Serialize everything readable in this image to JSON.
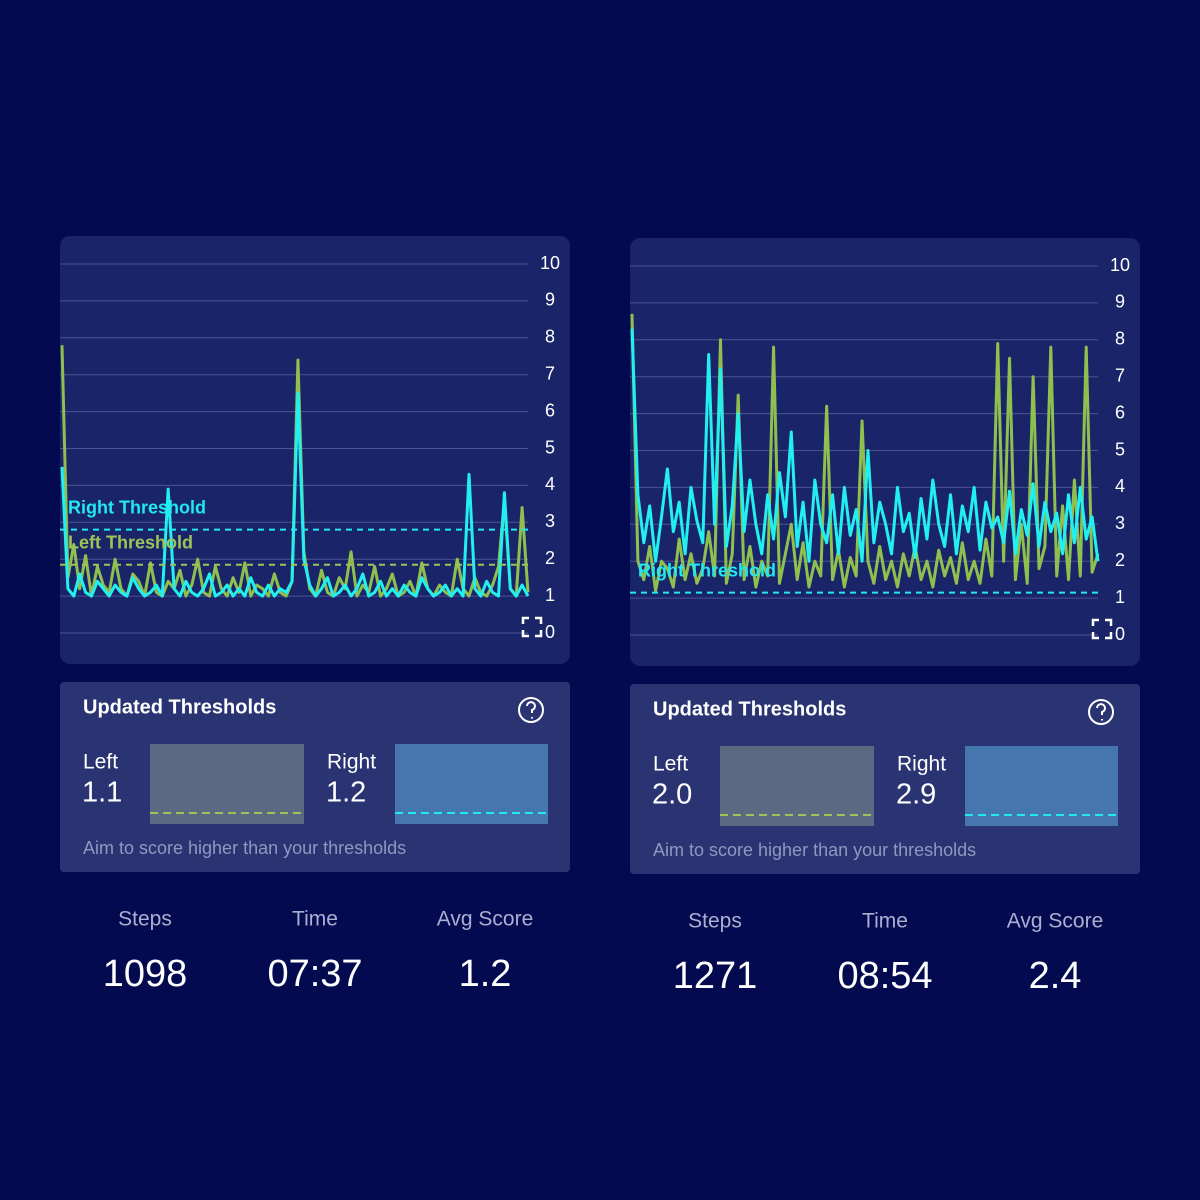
{
  "chart_data": [
    {
      "type": "line",
      "ylim": [
        0,
        10
      ],
      "yticks": [
        0,
        1,
        2,
        3,
        4,
        5,
        6,
        7,
        8,
        9,
        10
      ],
      "grid": true,
      "thresholds": [
        {
          "label": "Right Threshold",
          "value": 2.8,
          "color": "#22e8f0"
        },
        {
          "label": "Left Threshold",
          "value": 1.85,
          "color": "#9cc45a"
        }
      ],
      "series": [
        {
          "color": "#8fbf4f",
          "values": [
            7.8,
            1.5,
            2.4,
            1.2,
            2.1,
            1.0,
            1.8,
            1.3,
            1.1,
            2.0,
            1.2,
            1.0,
            1.6,
            1.4,
            1.0,
            1.9,
            1.1,
            1.0,
            1.4,
            1.2,
            1.7,
            1.0,
            1.3,
            2.0,
            1.1,
            1.0,
            1.8,
            1.2,
            1.0,
            1.5,
            1.1,
            1.9,
            1.0,
            1.3,
            1.2,
            1.0,
            1.6,
            1.1,
            1.0,
            1.4,
            7.4,
            2.2,
            1.2,
            1.0,
            1.7,
            1.1,
            1.0,
            1.5,
            1.2,
            2.2,
            1.0,
            1.3,
            1.1,
            1.8,
            1.0,
            1.2,
            1.6,
            1.0,
            1.1,
            1.4,
            1.0,
            1.9,
            1.2,
            1.0,
            1.3,
            1.1,
            1.0,
            2.0,
            1.2,
            1.0,
            1.5,
            1.1,
            1.0,
            1.3,
            1.8,
            3.6,
            1.2,
            1.0,
            3.4,
            1.1
          ]
        },
        {
          "color": "#22f0f0",
          "values": [
            4.5,
            1.2,
            1.0,
            1.6,
            1.1,
            1.0,
            1.4,
            1.2,
            1.0,
            1.3,
            1.1,
            1.0,
            1.5,
            1.2,
            1.0,
            1.1,
            1.3,
            1.0,
            3.9,
            1.2,
            1.0,
            1.4,
            1.1,
            1.0,
            1.2,
            1.6,
            1.0,
            1.1,
            1.3,
            1.0,
            1.2,
            1.0,
            1.5,
            1.1,
            1.0,
            1.3,
            1.0,
            1.2,
            1.1,
            1.4,
            6.5,
            2.0,
            1.3,
            1.0,
            1.2,
            1.5,
            1.0,
            1.1,
            1.3,
            1.0,
            1.2,
            1.6,
            1.0,
            1.1,
            1.4,
            1.0,
            1.2,
            1.0,
            1.3,
            1.1,
            1.0,
            1.5,
            1.2,
            1.0,
            1.1,
            1.3,
            1.0,
            1.2,
            1.0,
            4.3,
            1.2,
            1.0,
            1.4,
            1.1,
            1.0,
            3.8,
            1.2,
            1.0,
            1.3,
            1.0
          ]
        }
      ]
    },
    {
      "type": "line",
      "ylim": [
        0,
        10
      ],
      "yticks": [
        0,
        1,
        2,
        3,
        4,
        5,
        6,
        7,
        8,
        9,
        10
      ],
      "grid": true,
      "thresholds": [
        {
          "label": "Right Threshold",
          "value": 1.15,
          "color": "#22e8f0"
        }
      ],
      "series": [
        {
          "color": "#8fbf4f",
          "values": [
            8.7,
            2.0,
            1.5,
            2.4,
            1.2,
            2.0,
            1.8,
            1.3,
            2.6,
            1.5,
            2.2,
            1.4,
            1.8,
            2.8,
            1.6,
            8.0,
            1.4,
            2.2,
            6.5,
            1.5,
            2.4,
            1.3,
            2.0,
            1.6,
            7.8,
            1.4,
            2.2,
            3.0,
            1.5,
            2.5,
            1.3,
            2.0,
            1.6,
            6.2,
            1.5,
            2.3,
            1.3,
            2.1,
            1.6,
            5.8,
            2.0,
            1.4,
            2.4,
            1.5,
            2.0,
            1.3,
            2.2,
            1.6,
            2.4,
            1.5,
            2.0,
            1.3,
            2.3,
            1.6,
            2.1,
            1.4,
            2.5,
            1.5,
            2.0,
            1.4,
            2.6,
            1.6,
            7.9,
            2.0,
            7.5,
            1.5,
            3.0,
            1.4,
            7.0,
            1.8,
            2.4,
            7.8,
            1.6,
            3.5,
            1.5,
            4.2,
            1.6,
            7.8,
            1.7,
            2.2
          ]
        },
        {
          "color": "#22f0f0",
          "values": [
            8.3,
            3.8,
            2.5,
            3.5,
            2.0,
            3.2,
            4.5,
            2.8,
            3.6,
            2.2,
            4.0,
            3.1,
            2.5,
            7.6,
            3.0,
            7.2,
            2.4,
            3.5,
            6.0,
            2.8,
            4.2,
            3.0,
            2.2,
            3.8,
            2.6,
            4.4,
            3.2,
            5.5,
            2.4,
            3.6,
            2.0,
            4.2,
            3.0,
            2.5,
            3.8,
            2.2,
            4.0,
            2.7,
            3.4,
            2.0,
            5.0,
            2.5,
            3.6,
            3.0,
            2.2,
            4.0,
            2.8,
            3.3,
            2.1,
            3.7,
            2.6,
            4.2,
            3.0,
            2.4,
            3.8,
            2.2,
            3.5,
            2.8,
            4.0,
            2.3,
            3.6,
            2.9,
            3.2,
            2.5,
            3.9,
            2.2,
            3.4,
            2.7,
            4.1,
            2.4,
            3.6,
            2.8,
            3.3,
            2.2,
            3.8,
            2.5,
            4.0,
            2.6,
            3.2,
            2.0
          ]
        }
      ]
    }
  ],
  "cards": [
    {
      "title": "Updated Thresholds",
      "left_label": "Left",
      "left_value": "1.1",
      "right_label": "Right",
      "right_value": "1.2",
      "note": "Aim to score higher than your thresholds"
    },
    {
      "title": "Updated Thresholds",
      "left_label": "Left",
      "left_value": "2.0",
      "right_label": "Right",
      "right_value": "2.9",
      "note": "Aim to score higher than your thresholds"
    }
  ],
  "stats": [
    [
      {
        "label": "Steps",
        "value": "1098"
      },
      {
        "label": "Time",
        "value": "07:37"
      },
      {
        "label": "Avg Score",
        "value": "1.2"
      }
    ],
    [
      {
        "label": "Steps",
        "value": "1271"
      },
      {
        "label": "Time",
        "value": "08:54"
      },
      {
        "label": "Avg Score",
        "value": "2.4"
      }
    ]
  ]
}
